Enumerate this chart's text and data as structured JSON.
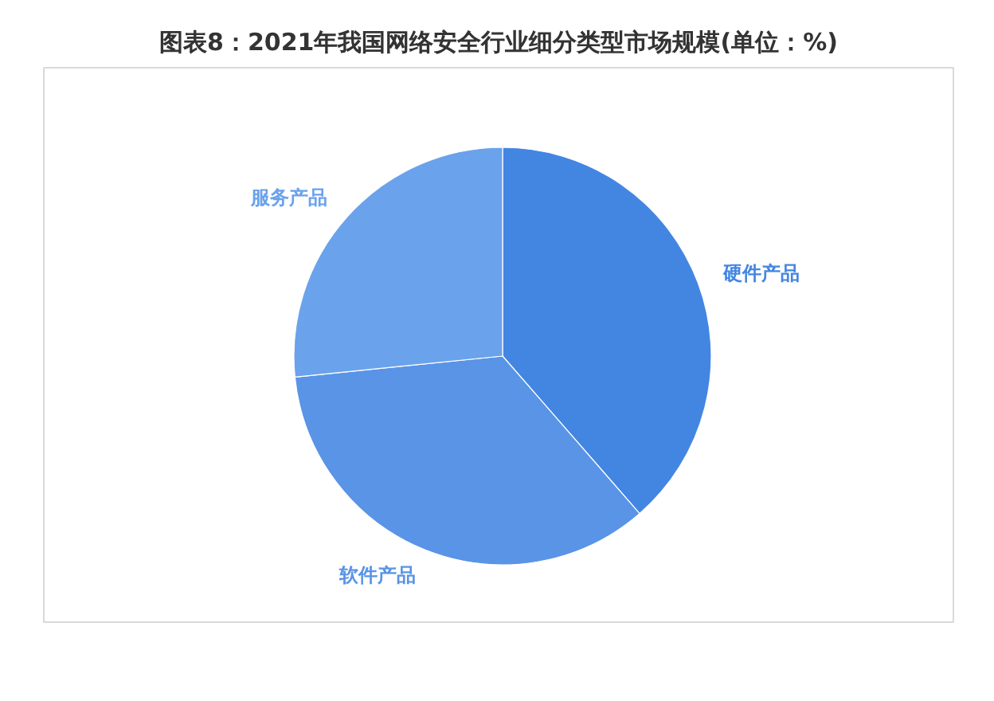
{
  "chart_data": {
    "type": "pie",
    "title": "图表8：2021年我国网络安全行业细分类型市场规模(单位：%)",
    "categories": [
      "硬件产品",
      "软件产品",
      "服务产品"
    ],
    "values": [
      38.6,
      34.8,
      26.6
    ],
    "colors": [
      "#4386e2",
      "#5994e6",
      "#6aa2eb"
    ]
  }
}
